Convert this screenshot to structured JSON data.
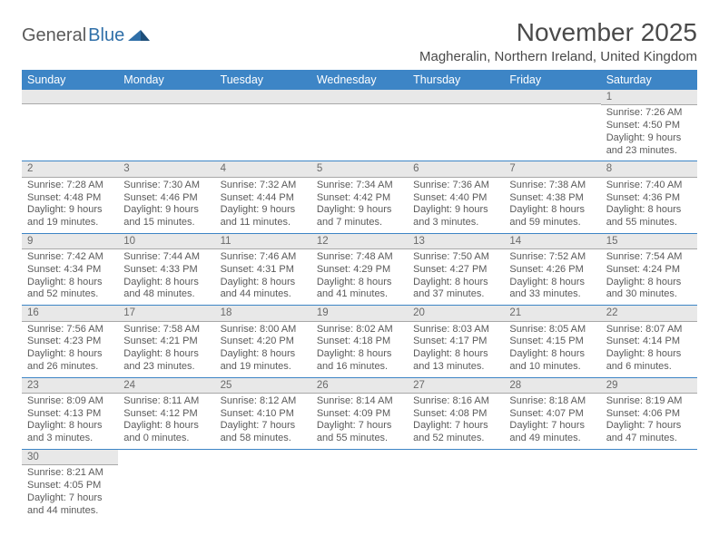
{
  "logo": {
    "general": "General",
    "blue": "Blue"
  },
  "title": "November 2025",
  "location": "Magheralin, Northern Ireland, United Kingdom",
  "colors": {
    "header_bg": "#3d85c6",
    "header_text": "#ffffff",
    "daynum_bg": "#e8e8e8",
    "row_divider": "#3d85c6",
    "text": "#5a5a5a",
    "logo_blue": "#2f6fa8"
  },
  "day_headers": [
    "Sunday",
    "Monday",
    "Tuesday",
    "Wednesday",
    "Thursday",
    "Friday",
    "Saturday"
  ],
  "weeks": [
    [
      null,
      null,
      null,
      null,
      null,
      null,
      {
        "n": "1",
        "sunrise": "Sunrise: 7:26 AM",
        "sunset": "Sunset: 4:50 PM",
        "daylight1": "Daylight: 9 hours",
        "daylight2": "and 23 minutes."
      }
    ],
    [
      {
        "n": "2",
        "sunrise": "Sunrise: 7:28 AM",
        "sunset": "Sunset: 4:48 PM",
        "daylight1": "Daylight: 9 hours",
        "daylight2": "and 19 minutes."
      },
      {
        "n": "3",
        "sunrise": "Sunrise: 7:30 AM",
        "sunset": "Sunset: 4:46 PM",
        "daylight1": "Daylight: 9 hours",
        "daylight2": "and 15 minutes."
      },
      {
        "n": "4",
        "sunrise": "Sunrise: 7:32 AM",
        "sunset": "Sunset: 4:44 PM",
        "daylight1": "Daylight: 9 hours",
        "daylight2": "and 11 minutes."
      },
      {
        "n": "5",
        "sunrise": "Sunrise: 7:34 AM",
        "sunset": "Sunset: 4:42 PM",
        "daylight1": "Daylight: 9 hours",
        "daylight2": "and 7 minutes."
      },
      {
        "n": "6",
        "sunrise": "Sunrise: 7:36 AM",
        "sunset": "Sunset: 4:40 PM",
        "daylight1": "Daylight: 9 hours",
        "daylight2": "and 3 minutes."
      },
      {
        "n": "7",
        "sunrise": "Sunrise: 7:38 AM",
        "sunset": "Sunset: 4:38 PM",
        "daylight1": "Daylight: 8 hours",
        "daylight2": "and 59 minutes."
      },
      {
        "n": "8",
        "sunrise": "Sunrise: 7:40 AM",
        "sunset": "Sunset: 4:36 PM",
        "daylight1": "Daylight: 8 hours",
        "daylight2": "and 55 minutes."
      }
    ],
    [
      {
        "n": "9",
        "sunrise": "Sunrise: 7:42 AM",
        "sunset": "Sunset: 4:34 PM",
        "daylight1": "Daylight: 8 hours",
        "daylight2": "and 52 minutes."
      },
      {
        "n": "10",
        "sunrise": "Sunrise: 7:44 AM",
        "sunset": "Sunset: 4:33 PM",
        "daylight1": "Daylight: 8 hours",
        "daylight2": "and 48 minutes."
      },
      {
        "n": "11",
        "sunrise": "Sunrise: 7:46 AM",
        "sunset": "Sunset: 4:31 PM",
        "daylight1": "Daylight: 8 hours",
        "daylight2": "and 44 minutes."
      },
      {
        "n": "12",
        "sunrise": "Sunrise: 7:48 AM",
        "sunset": "Sunset: 4:29 PM",
        "daylight1": "Daylight: 8 hours",
        "daylight2": "and 41 minutes."
      },
      {
        "n": "13",
        "sunrise": "Sunrise: 7:50 AM",
        "sunset": "Sunset: 4:27 PM",
        "daylight1": "Daylight: 8 hours",
        "daylight2": "and 37 minutes."
      },
      {
        "n": "14",
        "sunrise": "Sunrise: 7:52 AM",
        "sunset": "Sunset: 4:26 PM",
        "daylight1": "Daylight: 8 hours",
        "daylight2": "and 33 minutes."
      },
      {
        "n": "15",
        "sunrise": "Sunrise: 7:54 AM",
        "sunset": "Sunset: 4:24 PM",
        "daylight1": "Daylight: 8 hours",
        "daylight2": "and 30 minutes."
      }
    ],
    [
      {
        "n": "16",
        "sunrise": "Sunrise: 7:56 AM",
        "sunset": "Sunset: 4:23 PM",
        "daylight1": "Daylight: 8 hours",
        "daylight2": "and 26 minutes."
      },
      {
        "n": "17",
        "sunrise": "Sunrise: 7:58 AM",
        "sunset": "Sunset: 4:21 PM",
        "daylight1": "Daylight: 8 hours",
        "daylight2": "and 23 minutes."
      },
      {
        "n": "18",
        "sunrise": "Sunrise: 8:00 AM",
        "sunset": "Sunset: 4:20 PM",
        "daylight1": "Daylight: 8 hours",
        "daylight2": "and 19 minutes."
      },
      {
        "n": "19",
        "sunrise": "Sunrise: 8:02 AM",
        "sunset": "Sunset: 4:18 PM",
        "daylight1": "Daylight: 8 hours",
        "daylight2": "and 16 minutes."
      },
      {
        "n": "20",
        "sunrise": "Sunrise: 8:03 AM",
        "sunset": "Sunset: 4:17 PM",
        "daylight1": "Daylight: 8 hours",
        "daylight2": "and 13 minutes."
      },
      {
        "n": "21",
        "sunrise": "Sunrise: 8:05 AM",
        "sunset": "Sunset: 4:15 PM",
        "daylight1": "Daylight: 8 hours",
        "daylight2": "and 10 minutes."
      },
      {
        "n": "22",
        "sunrise": "Sunrise: 8:07 AM",
        "sunset": "Sunset: 4:14 PM",
        "daylight1": "Daylight: 8 hours",
        "daylight2": "and 6 minutes."
      }
    ],
    [
      {
        "n": "23",
        "sunrise": "Sunrise: 8:09 AM",
        "sunset": "Sunset: 4:13 PM",
        "daylight1": "Daylight: 8 hours",
        "daylight2": "and 3 minutes."
      },
      {
        "n": "24",
        "sunrise": "Sunrise: 8:11 AM",
        "sunset": "Sunset: 4:12 PM",
        "daylight1": "Daylight: 8 hours",
        "daylight2": "and 0 minutes."
      },
      {
        "n": "25",
        "sunrise": "Sunrise: 8:12 AM",
        "sunset": "Sunset: 4:10 PM",
        "daylight1": "Daylight: 7 hours",
        "daylight2": "and 58 minutes."
      },
      {
        "n": "26",
        "sunrise": "Sunrise: 8:14 AM",
        "sunset": "Sunset: 4:09 PM",
        "daylight1": "Daylight: 7 hours",
        "daylight2": "and 55 minutes."
      },
      {
        "n": "27",
        "sunrise": "Sunrise: 8:16 AM",
        "sunset": "Sunset: 4:08 PM",
        "daylight1": "Daylight: 7 hours",
        "daylight2": "and 52 minutes."
      },
      {
        "n": "28",
        "sunrise": "Sunrise: 8:18 AM",
        "sunset": "Sunset: 4:07 PM",
        "daylight1": "Daylight: 7 hours",
        "daylight2": "and 49 minutes."
      },
      {
        "n": "29",
        "sunrise": "Sunrise: 8:19 AM",
        "sunset": "Sunset: 4:06 PM",
        "daylight1": "Daylight: 7 hours",
        "daylight2": "and 47 minutes."
      }
    ],
    [
      {
        "n": "30",
        "sunrise": "Sunrise: 8:21 AM",
        "sunset": "Sunset: 4:05 PM",
        "daylight1": "Daylight: 7 hours",
        "daylight2": "and 44 minutes."
      },
      null,
      null,
      null,
      null,
      null,
      null
    ]
  ]
}
